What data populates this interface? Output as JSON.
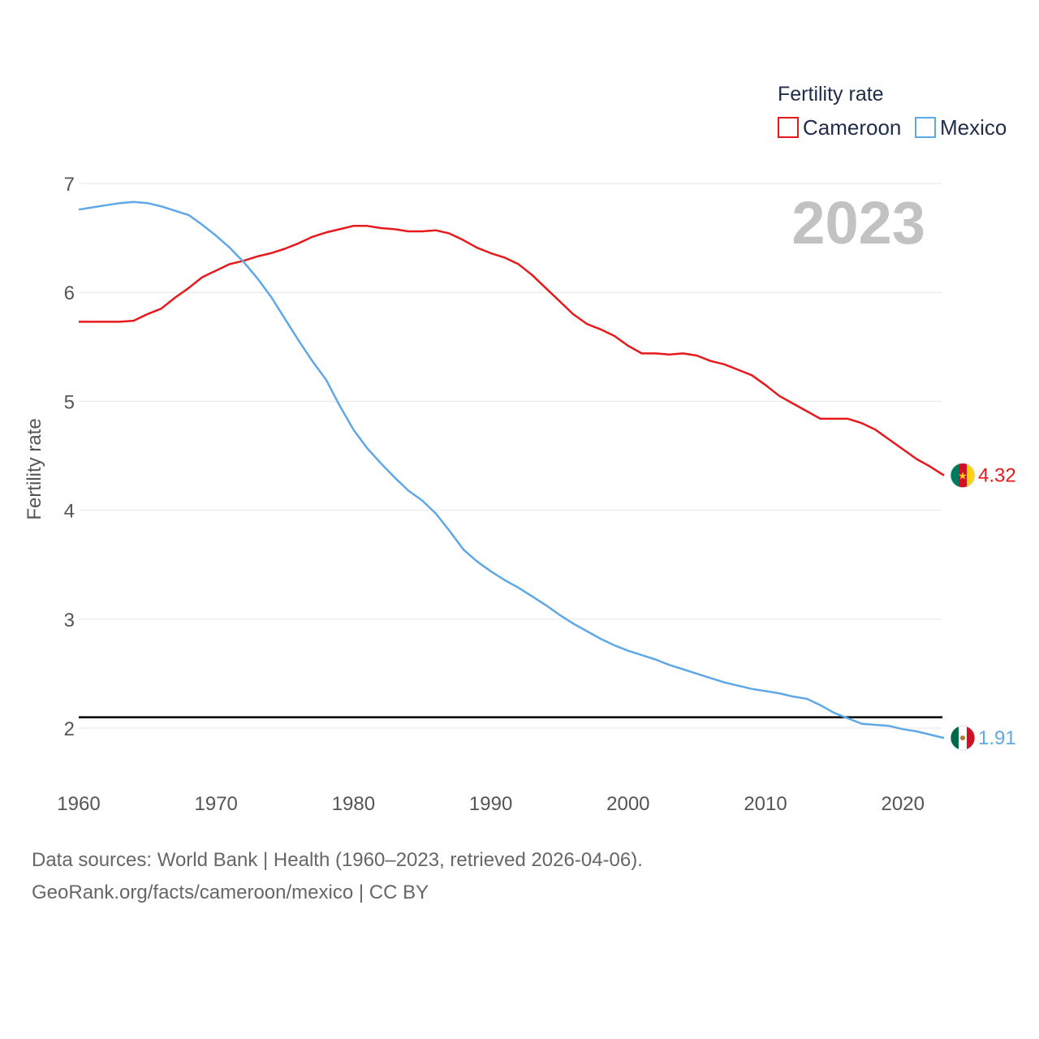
{
  "chart_data": {
    "type": "line",
    "title": "",
    "ylabel": "Fertility rate",
    "xlabel": "",
    "xlim": [
      1960,
      2023
    ],
    "ylim": [
      1.5,
      7.1
    ],
    "yticks": [
      2,
      3,
      4,
      5,
      6,
      7
    ],
    "xticks": [
      1960,
      1970,
      1980,
      1990,
      2000,
      2010,
      2020
    ],
    "grid": true,
    "current_year": "2023",
    "legend": {
      "title": "Fertility rate",
      "position": "top-right"
    },
    "reference_line": {
      "y": 2.1,
      "color": "#000000"
    },
    "x": [
      1960,
      1961,
      1962,
      1963,
      1964,
      1965,
      1966,
      1967,
      1968,
      1969,
      1970,
      1971,
      1972,
      1973,
      1974,
      1975,
      1976,
      1977,
      1978,
      1979,
      1980,
      1981,
      1982,
      1983,
      1984,
      1985,
      1986,
      1987,
      1988,
      1989,
      1990,
      1991,
      1992,
      1993,
      1994,
      1995,
      1996,
      1997,
      1998,
      1999,
      2000,
      2001,
      2002,
      2003,
      2004,
      2005,
      2006,
      2007,
      2008,
      2009,
      2010,
      2011,
      2012,
      2013,
      2014,
      2015,
      2016,
      2017,
      2018,
      2019,
      2020,
      2021,
      2022,
      2023
    ],
    "series": [
      {
        "name": "Cameroon",
        "color": "#e8191c",
        "end_label": "4.32",
        "values": [
          5.73,
          5.73,
          5.73,
          5.73,
          5.74,
          5.8,
          5.85,
          5.95,
          6.04,
          6.14,
          6.2,
          6.26,
          6.29,
          6.33,
          6.36,
          6.4,
          6.45,
          6.51,
          6.55,
          6.58,
          6.61,
          6.61,
          6.59,
          6.58,
          6.56,
          6.56,
          6.57,
          6.54,
          6.48,
          6.41,
          6.36,
          6.32,
          6.26,
          6.16,
          6.04,
          5.92,
          5.8,
          5.71,
          5.66,
          5.6,
          5.51,
          5.44,
          5.44,
          5.43,
          5.44,
          5.42,
          5.37,
          5.34,
          5.29,
          5.24,
          5.15,
          5.05,
          4.98,
          4.91,
          4.84,
          4.84,
          4.84,
          4.8,
          4.74,
          4.65,
          4.56,
          4.47,
          4.4,
          4.32
        ]
      },
      {
        "name": "Mexico",
        "color": "#5fa8e6",
        "end_label": "1.91",
        "values": [
          6.76,
          6.78,
          6.8,
          6.82,
          6.83,
          6.82,
          6.79,
          6.75,
          6.71,
          6.62,
          6.52,
          6.41,
          6.28,
          6.13,
          5.96,
          5.76,
          5.56,
          5.37,
          5.2,
          4.96,
          4.74,
          4.57,
          4.43,
          4.3,
          4.18,
          4.09,
          3.97,
          3.81,
          3.64,
          3.53,
          3.44,
          3.36,
          3.29,
          3.21,
          3.13,
          3.04,
          2.96,
          2.89,
          2.82,
          2.76,
          2.71,
          2.67,
          2.63,
          2.58,
          2.54,
          2.5,
          2.46,
          2.42,
          2.39,
          2.36,
          2.34,
          2.32,
          2.29,
          2.27,
          2.21,
          2.14,
          2.09,
          2.04,
          2.03,
          2.02,
          1.99,
          1.97,
          1.94,
          1.91
        ]
      }
    ]
  },
  "source": {
    "line1": "Data sources: World Bank | Health (1960–2023, retrieved 2026-04-06).",
    "line2": "GeoRank.org/facts/cameroon/mexico | CC BY"
  }
}
